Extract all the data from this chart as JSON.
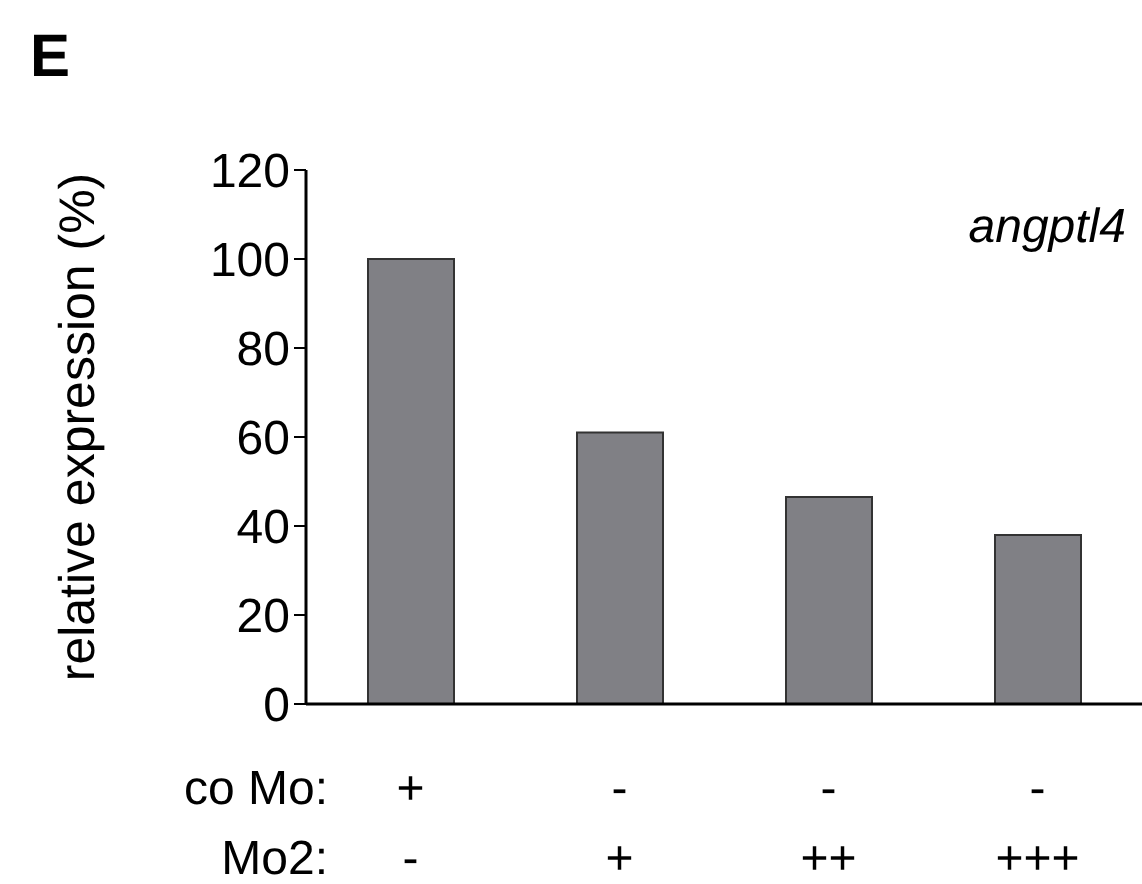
{
  "chart_data": {
    "type": "bar",
    "ylabel": "relative expression (%)",
    "annotations": [
      "E",
      "angptl4",
      "co Mo:",
      "Mo2:"
    ],
    "categories": [
      "+\n-",
      "-\n+",
      "-\n++",
      "-\n+++"
    ],
    "values": [
      100,
      61,
      46.5,
      38
    ],
    "color": "#808085",
    "ylim": [
      0,
      120
    ],
    "yticks": [
      0,
      20,
      40,
      60,
      80,
      100,
      120
    ],
    "grid": false,
    "legend": false
  }
}
